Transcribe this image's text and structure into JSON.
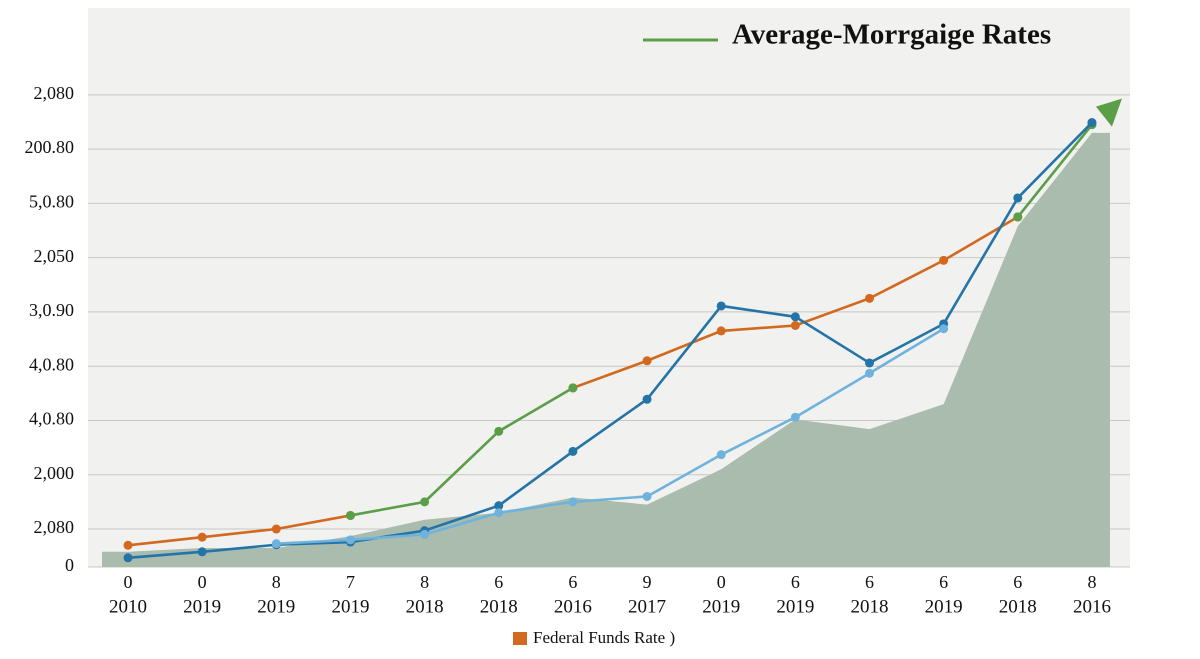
{
  "chart_data": {
    "type": "line",
    "title": "Average-Morrgaige Rates",
    "title_color": "#5a9e48",
    "categories": [
      "2010",
      "2019",
      "2019",
      "2019",
      "2018",
      "2018",
      "2016",
      "2017",
      "2019",
      "2019",
      "2018",
      "2019",
      "2018",
      "2016"
    ],
    "category_sublabels": [
      "0",
      "0",
      "8",
      "7",
      "8",
      "6",
      "6",
      "9",
      "0",
      "6",
      "6",
      "6",
      "6",
      "8"
    ],
    "ylim": [
      0,
      10.3
    ],
    "yticks": [
      0,
      {
        "value": 0.7,
        "label": "2,080"
      },
      {
        "value": 1.7,
        "label": "2,000"
      },
      {
        "value": 2.7,
        "label": "4,0.80"
      },
      {
        "value": 3.7,
        "label": "4,0.80"
      },
      {
        "value": 4.7,
        "label": "3,0.90"
      },
      {
        "value": 5.7,
        "label": "2,050"
      },
      {
        "value": 6.7,
        "label": "5,0.80"
      },
      {
        "value": 7.7,
        "label": "200.80"
      },
      {
        "value": 8.7,
        "label": "2,080"
      }
    ],
    "grid": true,
    "area": {
      "color": "#a9bcae",
      "values": [
        0.28,
        0.35,
        0.35,
        0.57,
        0.87,
        1.0,
        1.28,
        1.15,
        1.8,
        2.72,
        2.54,
        3.0,
        6.28,
        8.0
      ]
    },
    "series": [
      {
        "name": "Federal Funds Rate )",
        "color": "#d2691e",
        "values": [
          0.4,
          0.55,
          0.7,
          0.95,
          null,
          null,
          3.3,
          3.8,
          4.35,
          4.45,
          4.95,
          5.65,
          6.45,
          null
        ]
      },
      {
        "color": "#5a9e48",
        "values": [
          null,
          null,
          null,
          0.95,
          1.2,
          2.5,
          3.3,
          null,
          null,
          null,
          null,
          null,
          6.45,
          8.15
        ]
      },
      {
        "color": "#2474a8",
        "values": [
          0.17,
          0.28,
          0.41,
          0.46,
          0.67,
          1.13,
          2.13,
          3.09,
          4.81,
          4.61,
          3.76,
          4.48,
          6.8,
          8.19
        ]
      },
      {
        "color": "#6fb3dc",
        "values": [
          null,
          null,
          0.43,
          0.5,
          0.6,
          1.0,
          1.2,
          1.3,
          2.07,
          2.76,
          3.57,
          4.39,
          null,
          null
        ]
      }
    ]
  }
}
